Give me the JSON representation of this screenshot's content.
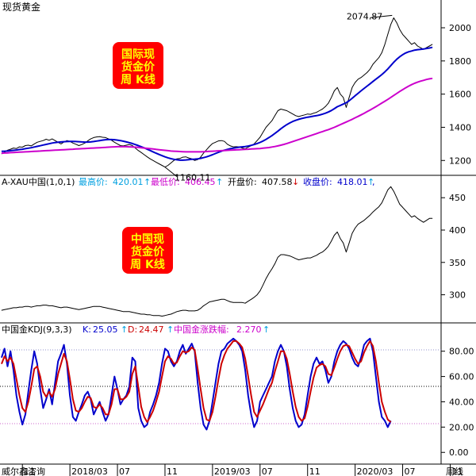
{
  "chart_data": [
    {
      "type": "line",
      "panel": "main",
      "title": "现货黄金",
      "badge_lines": [
        "国际现",
        "货金价",
        "周 K线"
      ],
      "y_ticks": [
        1200,
        1400,
        1600,
        1800,
        2000
      ],
      "ylim": [
        1120,
        2110
      ],
      "annotations": [
        {
          "label": "2074.87",
          "x": "2020/08",
          "y": 2074.87,
          "type": "high"
        },
        {
          "label": "1160.11",
          "x": "2018/08",
          "y": 1160.11,
          "type": "low"
        }
      ],
      "series": [
        {
          "role": "price-weekly",
          "color": "#000000",
          "values": [
            1240,
            1250,
            1262,
            1268,
            1275,
            1272,
            1282,
            1280,
            1290,
            1292,
            1288,
            1300,
            1310,
            1315,
            1320,
            1328,
            1322,
            1330,
            1320,
            1310,
            1300,
            1312,
            1320,
            1315,
            1305,
            1298,
            1290,
            1296,
            1305,
            1318,
            1330,
            1338,
            1342,
            1344,
            1340,
            1338,
            1330,
            1322,
            1310,
            1300,
            1290,
            1288,
            1292,
            1296,
            1290,
            1275,
            1260,
            1248,
            1235,
            1222,
            1210,
            1200,
            1190,
            1180,
            1170,
            1160,
            1170,
            1185,
            1200,
            1210,
            1212,
            1220,
            1222,
            1215,
            1210,
            1200,
            1205,
            1220,
            1245,
            1265,
            1285,
            1302,
            1310,
            1318,
            1320,
            1315,
            1298,
            1288,
            1282,
            1283,
            1282,
            1275,
            1270,
            1280,
            1290,
            1300,
            1320,
            1340,
            1370,
            1400,
            1420,
            1440,
            1470,
            1500,
            1510,
            1505,
            1500,
            1490,
            1480,
            1470,
            1465,
            1470,
            1475,
            1480,
            1478,
            1485,
            1490,
            1500,
            1510,
            1525,
            1545,
            1580,
            1620,
            1640,
            1600,
            1580,
            1520,
            1580,
            1640,
            1670,
            1690,
            1700,
            1715,
            1730,
            1750,
            1780,
            1800,
            1820,
            1850,
            1900,
            1960,
            2020,
            2060,
            2030,
            1990,
            1960,
            1940,
            1920,
            1900,
            1910,
            1890,
            1880,
            1870,
            1880,
            1890,
            1900
          ]
        },
        {
          "role": "ma-short",
          "color": "#0000cc",
          "values": [
            1255,
            1256,
            1257,
            1259,
            1261,
            1263,
            1266,
            1268,
            1271,
            1274,
            1277,
            1281,
            1285,
            1289,
            1293,
            1297,
            1301,
            1305,
            1308,
            1310,
            1312,
            1313,
            1314,
            1315,
            1315,
            1314,
            1313,
            1312,
            1311,
            1311,
            1312,
            1314,
            1317,
            1320,
            1323,
            1325,
            1326,
            1326,
            1325,
            1323,
            1320,
            1316,
            1312,
            1307,
            1302,
            1296,
            1290,
            1283,
            1276,
            1268,
            1260,
            1252,
            1244,
            1236,
            1229,
            1222,
            1216,
            1211,
            1207,
            1204,
            1202,
            1202,
            1203,
            1205,
            1207,
            1208,
            1210,
            1213,
            1217,
            1222,
            1228,
            1235,
            1242,
            1249,
            1256,
            1262,
            1267,
            1271,
            1274,
            1277,
            1280,
            1282,
            1284,
            1287,
            1291,
            1296,
            1302,
            1309,
            1317,
            1327,
            1338,
            1350,
            1363,
            1377,
            1391,
            1404,
            1416,
            1426,
            1435,
            1442,
            1448,
            1453,
            1457,
            1461,
            1464,
            1467,
            1470,
            1474,
            1479,
            1485,
            1492,
            1501,
            1512,
            1524,
            1532,
            1540,
            1548,
            1560,
            1575,
            1590,
            1605,
            1620,
            1634,
            1648,
            1662,
            1676,
            1690,
            1704,
            1718,
            1734,
            1752,
            1772,
            1792,
            1810,
            1825,
            1838,
            1848,
            1855,
            1860,
            1865,
            1868,
            1870,
            1872,
            1875,
            1878,
            1882
          ]
        },
        {
          "role": "ma-long",
          "color": "#cc00cc",
          "values": [
            1244,
            1245,
            1246,
            1247,
            1248,
            1249,
            1250,
            1251,
            1252,
            1253,
            1254,
            1255,
            1256,
            1257,
            1258,
            1259,
            1260,
            1261,
            1262,
            1263,
            1264,
            1265,
            1266,
            1267,
            1268,
            1269,
            1270,
            1271,
            1272,
            1273,
            1274,
            1275,
            1276,
            1277,
            1278,
            1279,
            1280,
            1281,
            1282,
            1283,
            1283,
            1283,
            1283,
            1282,
            1281,
            1280,
            1279,
            1277,
            1275,
            1273,
            1271,
            1269,
            1267,
            1265,
            1263,
            1261,
            1259,
            1257,
            1256,
            1255,
            1254,
            1253,
            1252,
            1252,
            1252,
            1252,
            1252,
            1252,
            1253,
            1254,
            1255,
            1256,
            1257,
            1258,
            1259,
            1260,
            1261,
            1262,
            1263,
            1264,
            1265,
            1266,
            1267,
            1268,
            1269,
            1270,
            1271,
            1272,
            1274,
            1276,
            1278,
            1281,
            1284,
            1288,
            1292,
            1297,
            1302,
            1308,
            1314,
            1320,
            1326,
            1332,
            1338,
            1344,
            1350,
            1356,
            1362,
            1368,
            1374,
            1380,
            1386,
            1393,
            1400,
            1408,
            1416,
            1424,
            1432,
            1440,
            1448,
            1457,
            1466,
            1475,
            1484,
            1494,
            1504,
            1514,
            1524,
            1535,
            1546,
            1557,
            1568,
            1580,
            1592,
            1604,
            1616,
            1627,
            1638,
            1648,
            1657,
            1665,
            1672,
            1678,
            1683,
            1688,
            1692,
            1695
          ]
        }
      ]
    },
    {
      "type": "line",
      "panel": "mid",
      "title": "A-XAU中国(1,0,1)",
      "info": [
        {
          "label": "最高价:",
          "value": "420.01",
          "arrow": "↑",
          "color": "#00a0e0"
        },
        {
          "label": "最低价:",
          "value": "406.45",
          "arrow": "↑",
          "color": "#cc00cc"
        },
        {
          "label": "开盘价:",
          "value": "407.58",
          "arrow": "↓",
          "color": "#000000"
        },
        {
          "label": "收盘价:",
          "value": "418.01",
          "arrow": "↑",
          "color": "#0000cc"
        }
      ],
      "badge_lines": [
        "中国现",
        "货金价",
        "周 K线"
      ],
      "y_ticks": [
        300,
        350,
        400,
        450
      ],
      "ylim": [
        259,
        476
      ],
      "series": [
        {
          "role": "price-weekly",
          "color": "#000000",
          "values": [
            276,
            277,
            278,
            279,
            280,
            280,
            281,
            281,
            282,
            282,
            281,
            282,
            283,
            283,
            284,
            284,
            283,
            283,
            282,
            281,
            280,
            281,
            281,
            280,
            279,
            278,
            277,
            278,
            279,
            280,
            281,
            282,
            282,
            282,
            281,
            280,
            279,
            278,
            277,
            276,
            275,
            274,
            274,
            274,
            273,
            272,
            271,
            270,
            270,
            269,
            269,
            268,
            268,
            268,
            267,
            268,
            269,
            270,
            272,
            274,
            275,
            276,
            276,
            275,
            275,
            275,
            276,
            279,
            283,
            286,
            289,
            290,
            291,
            292,
            293,
            293,
            291,
            289,
            288,
            288,
            288,
            288,
            287,
            290,
            293,
            296,
            300,
            306,
            315,
            325,
            333,
            340,
            348,
            358,
            362,
            362,
            361,
            360,
            358,
            356,
            354,
            355,
            356,
            357,
            357,
            359,
            361,
            364,
            366,
            370,
            375,
            383,
            392,
            397,
            387,
            380,
            366,
            380,
            395,
            403,
            409,
            412,
            415,
            419,
            423,
            428,
            432,
            436,
            442,
            452,
            462,
            467,
            460,
            450,
            440,
            435,
            430,
            425,
            420,
            422,
            418,
            415,
            412,
            415,
            418,
            418
          ]
        }
      ]
    },
    {
      "type": "line",
      "panel": "kdj",
      "title": "中国金KDJ(9,3,3)",
      "info": [
        {
          "label": "K:",
          "value": "25.05",
          "arrow": "↑",
          "color": "#0000cc"
        },
        {
          "label": "D:",
          "value": "24.47",
          "arrow": "↑",
          "color": "#cc0000"
        },
        {
          "label": "中国金涨跌幅:",
          "value": "2.270",
          "arrow": "↑",
          "color": "#cc00cc"
        }
      ],
      "y_ticks": [
        0.0,
        20.0,
        40.0,
        60.0,
        80.0
      ],
      "ylim": [
        -8,
        98
      ],
      "series": [
        {
          "name": "K",
          "color": "#0000cc",
          "values": [
            75,
            82,
            68,
            80,
            65,
            45,
            32,
            22,
            30,
            48,
            65,
            80,
            70,
            50,
            35,
            42,
            50,
            38,
            55,
            72,
            78,
            85,
            70,
            45,
            28,
            25,
            32,
            38,
            45,
            48,
            42,
            30,
            35,
            40,
            32,
            25,
            30,
            45,
            60,
            50,
            38,
            42,
            45,
            52,
            75,
            72,
            35,
            25,
            20,
            22,
            32,
            38,
            45,
            55,
            70,
            82,
            80,
            72,
            68,
            72,
            80,
            85,
            78,
            82,
            86,
            80,
            55,
            35,
            22,
            18,
            25,
            40,
            55,
            70,
            80,
            82,
            86,
            88,
            90,
            88,
            85,
            80,
            65,
            45,
            30,
            20,
            25,
            40,
            45,
            50,
            55,
            60,
            72,
            80,
            85,
            80,
            68,
            50,
            35,
            25,
            20,
            22,
            30,
            45,
            60,
            70,
            75,
            70,
            72,
            65,
            55,
            60,
            72,
            80,
            85,
            88,
            86,
            82,
            75,
            70,
            68,
            75,
            85,
            88,
            90,
            80,
            60,
            40,
            28,
            25,
            20,
            25
          ]
        },
        {
          "name": "D",
          "color": "#cc0000",
          "values": [
            70,
            76,
            72,
            75,
            70,
            58,
            45,
            35,
            32,
            40,
            52,
            66,
            68,
            60,
            48,
            44,
            48,
            44,
            50,
            62,
            70,
            78,
            72,
            58,
            42,
            33,
            32,
            35,
            40,
            44,
            43,
            36,
            35,
            38,
            35,
            30,
            30,
            38,
            50,
            50,
            42,
            42,
            44,
            48,
            62,
            68,
            52,
            36,
            28,
            24,
            28,
            33,
            40,
            48,
            60,
            72,
            76,
            74,
            70,
            71,
            76,
            80,
            79,
            80,
            83,
            81,
            66,
            50,
            35,
            26,
            25,
            32,
            44,
            58,
            70,
            77,
            82,
            85,
            88,
            88,
            86,
            83,
            74,
            60,
            45,
            32,
            28,
            33,
            38,
            44,
            50,
            55,
            64,
            72,
            80,
            80,
            74,
            62,
            48,
            36,
            28,
            25,
            27,
            36,
            48,
            59,
            67,
            69,
            70,
            68,
            62,
            61,
            67,
            74,
            80,
            84,
            85,
            84,
            79,
            74,
            70,
            72,
            79,
            84,
            88,
            84,
            72,
            55,
            40,
            32,
            26,
            24
          ]
        }
      ]
    }
  ],
  "x_axis": {
    "labels": [
      "11",
      "2018/03",
      "07",
      "11",
      "2019/03",
      "07",
      "11",
      "2020/03",
      "07",
      "11"
    ],
    "label_weeks": [
      7,
      23,
      39,
      55,
      71,
      87,
      103,
      119,
      135,
      151
    ]
  },
  "footer": {
    "vendor": "威尔鑫咨询",
    "period": "周线"
  }
}
